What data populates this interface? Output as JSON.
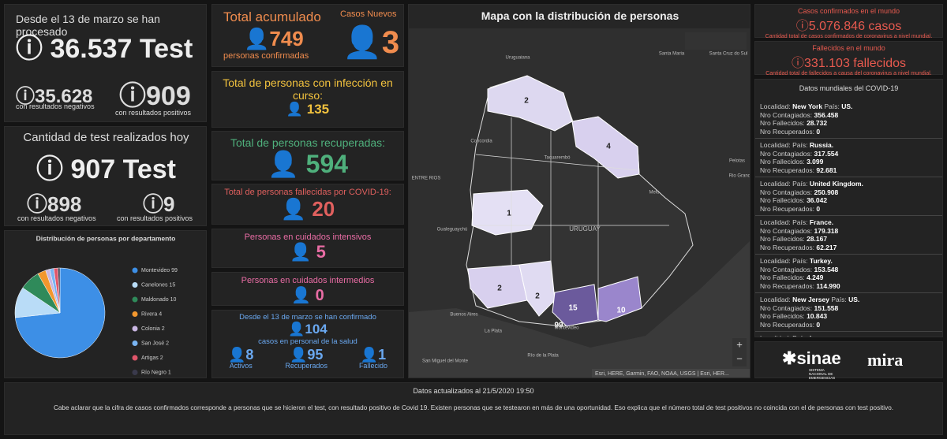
{
  "tests": {
    "title": "Desde el 13 de marzo se han procesado",
    "total": "36.537 Test",
    "negatives": "35.628",
    "negatives_label": "con resultados negativos",
    "positives": "909",
    "positives_label": "con resultados positivos"
  },
  "tests_today": {
    "title": "Cantidad de test realizados hoy",
    "total": "907 Test",
    "negatives": "898",
    "negatives_label": "con resultados negativos",
    "positives": "9",
    "positives_label": "con resultados positivos"
  },
  "chart_data": {
    "type": "pie",
    "title": "Distribución de personas por departamento",
    "categories": [
      "Montevideo",
      "Canelones",
      "Maldonado",
      "Rivera",
      "Colonia",
      "San José",
      "Artigas",
      "Río Negro"
    ],
    "values": [
      99,
      15,
      10,
      4,
      2,
      2,
      2,
      1
    ],
    "colors": [
      "#3d8fe6",
      "#b9dcf7",
      "#2f8a5a",
      "#f2972e",
      "#c9b6e2",
      "#79b4f2",
      "#e0566a",
      "#3a3a4c"
    ]
  },
  "accumulated": {
    "title": "Total acumulado",
    "value": "749",
    "label": "personas confirmadas",
    "new_title": "Casos Nuevos",
    "new_value": "3"
  },
  "in_course": {
    "title": "Total de personas con infección en curso:",
    "value": "135"
  },
  "recovered": {
    "title": "Total de personas recuperadas:",
    "value": "594"
  },
  "deceased": {
    "title": "Total de personas fallecidas por COVID-19:",
    "value": "20"
  },
  "icu": {
    "title": "Personas en cuidados intensivos",
    "value": "5"
  },
  "intermediate": {
    "title": "Personas en cuidados intermedios",
    "value": "0"
  },
  "health": {
    "title": "Desde el 13 de marzo se han confirmado",
    "value": "104",
    "label": "casos en personal de la salud",
    "items": [
      {
        "value": "8",
        "label": "Activos"
      },
      {
        "value": "95",
        "label": "Recuperados"
      },
      {
        "value": "1",
        "label": "Fallecido"
      }
    ]
  },
  "map": {
    "title": "Mapa con la distribución de personas",
    "attribution": "Esri, HERE, Garmin, FAO, NOAA, USGS | Esri, HER...",
    "regions": [
      "2",
      "4",
      "1",
      "2",
      "2",
      "15",
      "10",
      "99"
    ],
    "places": [
      "Uruguaiana",
      "Santa Maria",
      "Santa Cruz do Sul",
      "Concordia",
      "Tacuarembó",
      "ENTRE RIOS",
      "Melo",
      "Pelotas",
      "Rio Grande",
      "Gualeguaychú",
      "URUGUAY",
      "Buenos Aires",
      "La Plata",
      "Montevideo",
      "Río de la Plata",
      "San Miguel del Monte"
    ]
  },
  "world_cases": {
    "title": "Casos confirmados en el mundo",
    "value": "5.076.846 casos",
    "label": "Cantidad total de casos confirmados de coronavirus a nivel mundial."
  },
  "world_deaths": {
    "title": "Fallecidos en el mundo",
    "value": "331.103 fallecidos",
    "label": "Cantidad total de fallecidos a causa del coronavirus a nivel mundial."
  },
  "world_list": {
    "title": "Datos mundiales del COVID-19",
    "labels": {
      "locality": "Localidad:",
      "country": "País:",
      "infected": "Nro Contagiados:",
      "deaths": "Nro Fallecidos:",
      "recovered": "Nro Recuperados:"
    },
    "entries": [
      {
        "locality": "New York",
        "country": "US.",
        "infected": "356.458",
        "deaths": "28.732",
        "recovered": "0"
      },
      {
        "country": "Russia.",
        "infected": "317.554",
        "deaths": "3.099",
        "recovered": "92.681"
      },
      {
        "country": "United Kingdom.",
        "infected": "250.908",
        "deaths": "36.042",
        "recovered": "0"
      },
      {
        "country": "France.",
        "infected": "179.318",
        "deaths": "28.167",
        "recovered": "62.217"
      },
      {
        "country": "Turkey.",
        "infected": "153.548",
        "deaths": "4.249",
        "recovered": "114.990"
      },
      {
        "locality": "New Jersey",
        "country": "US.",
        "infected": "151.558",
        "deaths": "10.843",
        "recovered": "0"
      },
      {
        "country": "Iran"
      }
    ]
  },
  "logos": {
    "sinae": "sinae",
    "sinae_sub": "SISTEMA NACIONAL DE EMERGENCIAS",
    "mira": "mira"
  },
  "footer": {
    "updated": "Datos actualizados al 21/5/2020 19:50",
    "note": "Cabe aclarar que la cifra de casos confirmados corresponde a personas que se hicieron el test, con resultado positivo de Covid 19. Existen personas que se testearon en más de una oportunidad. Eso explica que el número total de test positivos no coincida con el de personas con test positivo."
  }
}
